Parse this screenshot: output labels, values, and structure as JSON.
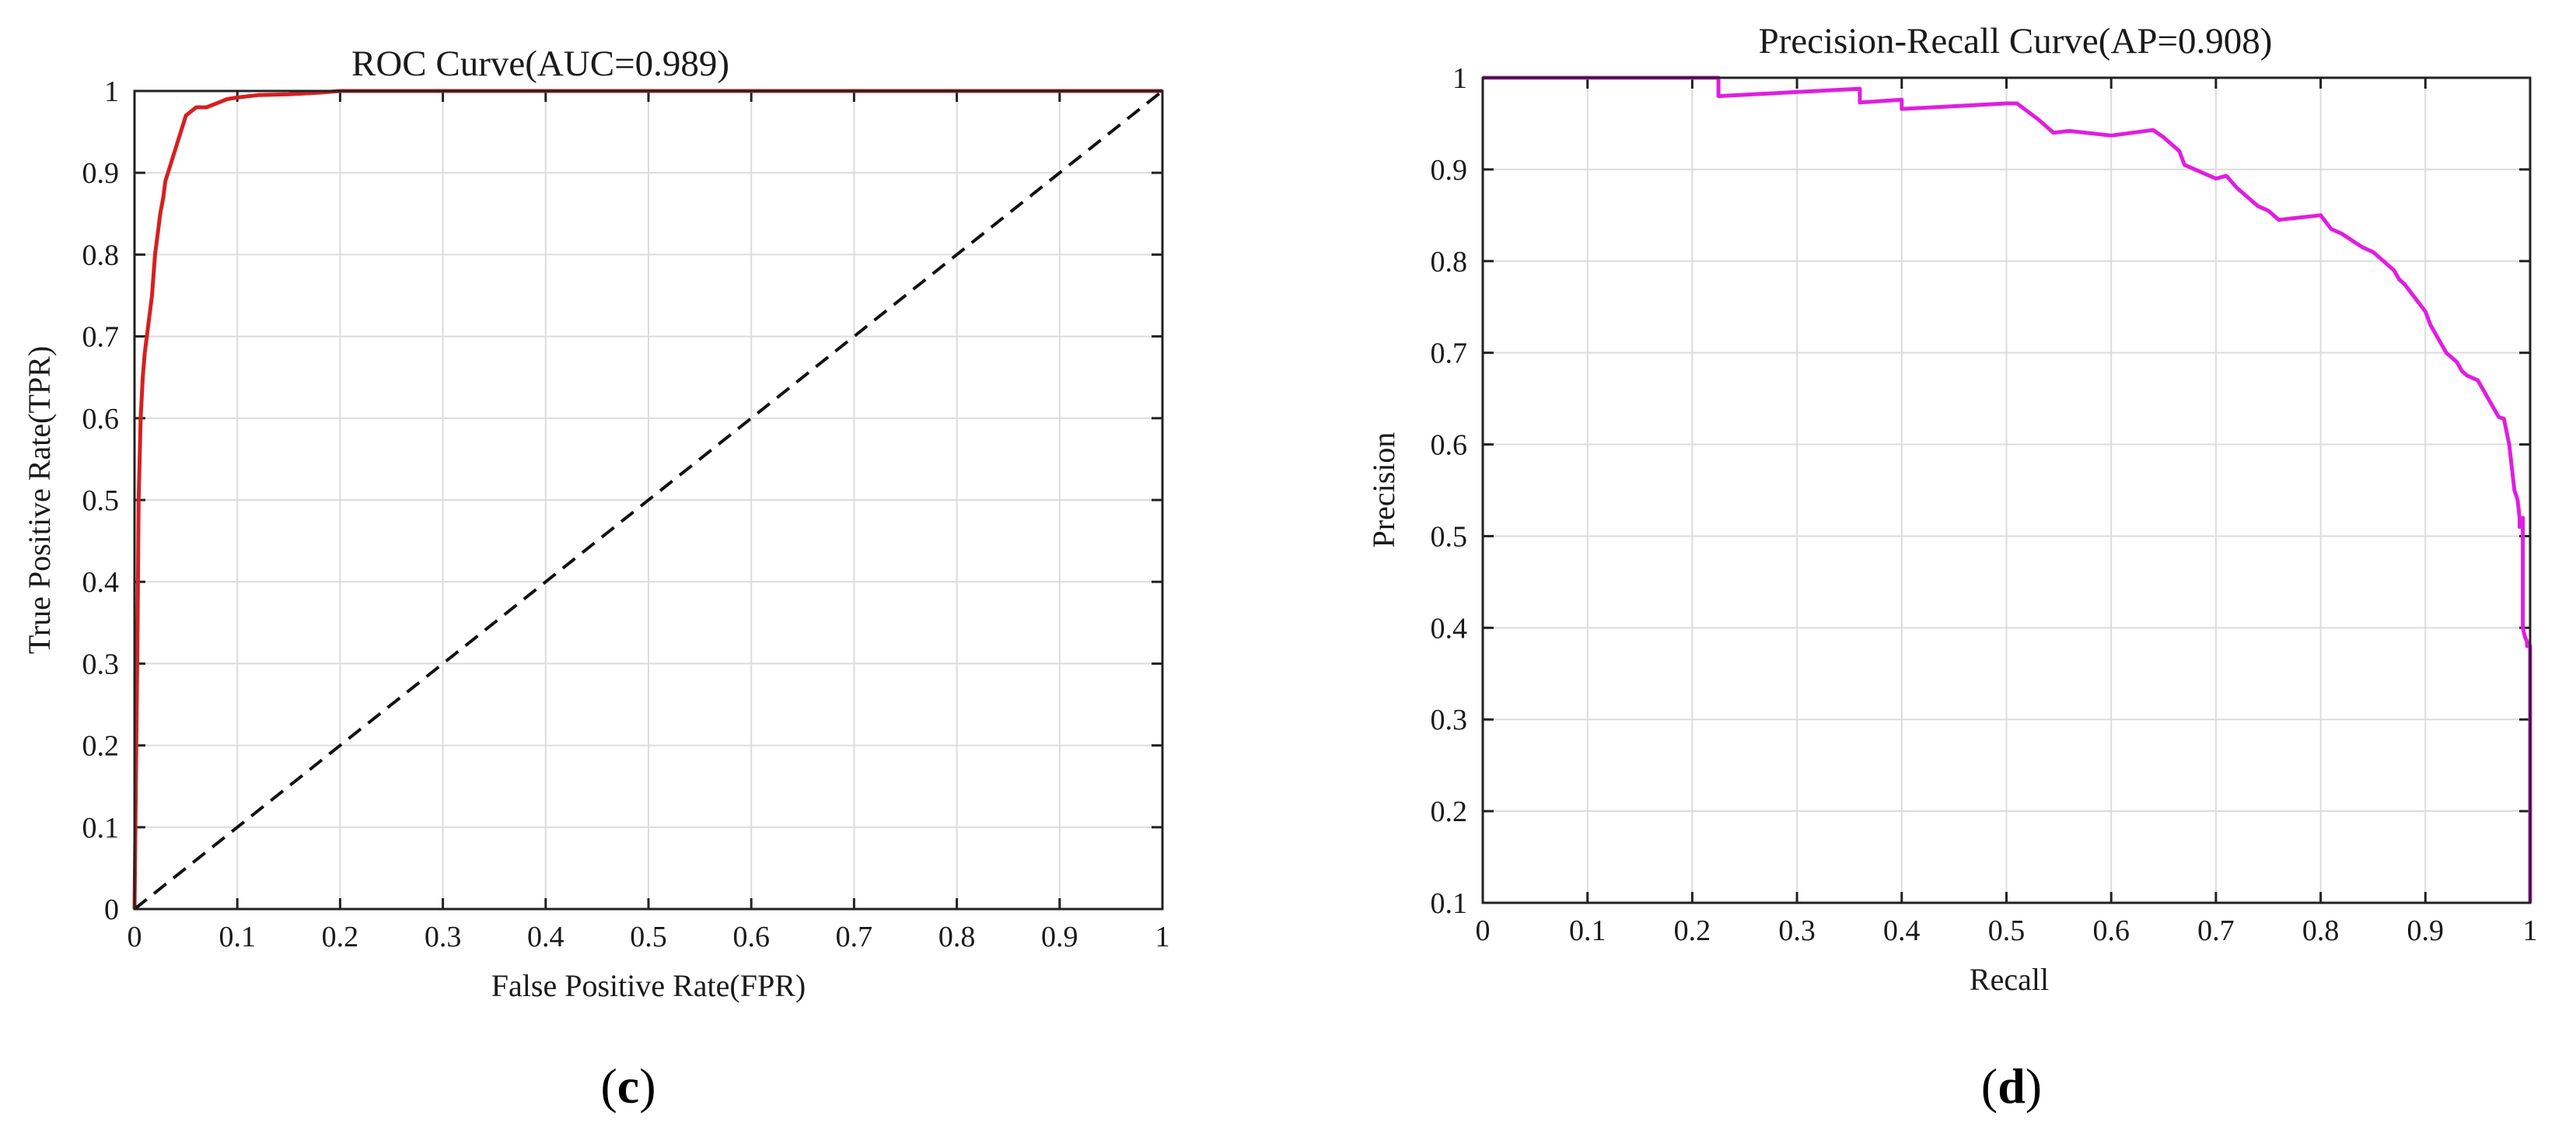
{
  "chart_data": [
    {
      "type": "line",
      "title": "ROC Curve(AUC=0.989)",
      "xlabel": "False Positive Rate(FPR)",
      "ylabel": "True Positive Rate(TPR)",
      "xlim": [
        0,
        1
      ],
      "ylim": [
        0,
        1
      ],
      "xticks": [
        "0",
        "0.1",
        "0.2",
        "0.3",
        "0.4",
        "0.5",
        "0.6",
        "0.7",
        "0.8",
        "0.9",
        "1"
      ],
      "yticks": [
        "0",
        "0.1",
        "0.2",
        "0.3",
        "0.4",
        "0.5",
        "0.6",
        "0.7",
        "0.8",
        "0.9",
        "1"
      ],
      "grid": true,
      "panel_label": "c",
      "series": [
        {
          "color": "#d62020",
          "style": "solid",
          "x": [
            0,
            0.003,
            0.004,
            0.006,
            0.008,
            0.01,
            0.012,
            0.014,
            0.017,
            0.02,
            0.022,
            0.025,
            0.028,
            0.03,
            0.035,
            0.04,
            0.045,
            0.05,
            0.055,
            0.06,
            0.07,
            0.08,
            0.09,
            0.1,
            0.12,
            0.15,
            0.18,
            0.2,
            0.3,
            0.5,
            0.7,
            0.9,
            1.0
          ],
          "y": [
            0,
            0.35,
            0.5,
            0.6,
            0.65,
            0.68,
            0.7,
            0.72,
            0.75,
            0.8,
            0.82,
            0.85,
            0.87,
            0.89,
            0.91,
            0.93,
            0.95,
            0.97,
            0.975,
            0.98,
            0.98,
            0.985,
            0.99,
            0.992,
            0.995,
            0.996,
            0.998,
            1.0,
            1.0,
            1.0,
            1.0,
            1.0,
            1.0
          ]
        },
        {
          "color": "#111111",
          "style": "dashed",
          "x": [
            0,
            1
          ],
          "y": [
            0,
            1
          ]
        }
      ]
    },
    {
      "type": "line",
      "title": "Precision-Recall Curve(AP=0.908)",
      "xlabel": "Recall",
      "ylabel": "Precision",
      "xlim": [
        0,
        1
      ],
      "ylim": [
        0.1,
        1
      ],
      "xticks": [
        "0",
        "0.1",
        "0.2",
        "0.3",
        "0.4",
        "0.5",
        "0.6",
        "0.7",
        "0.8",
        "0.9",
        "1"
      ],
      "yticks": [
        "0.1",
        "0.2",
        "0.3",
        "0.4",
        "0.5",
        "0.6",
        "0.7",
        "0.8",
        "0.9",
        "1"
      ],
      "grid": true,
      "panel_label": "d",
      "series": [
        {
          "color": "#e01ee0",
          "style": "solid",
          "x": [
            0,
            0.225,
            0.225,
            0.36,
            0.36,
            0.4,
            0.4,
            0.5,
            0.51,
            0.53,
            0.545,
            0.56,
            0.6,
            0.64,
            0.65,
            0.665,
            0.67,
            0.68,
            0.7,
            0.71,
            0.72,
            0.74,
            0.75,
            0.76,
            0.8,
            0.81,
            0.82,
            0.84,
            0.85,
            0.86,
            0.87,
            0.875,
            0.88,
            0.89,
            0.9,
            0.905,
            0.91,
            0.915,
            0.92,
            0.93,
            0.935,
            0.94,
            0.95,
            0.955,
            0.96,
            0.97,
            0.975,
            0.98,
            0.985,
            0.988,
            0.99,
            0.99,
            0.993,
            0.993,
            0.995,
            0.995,
            0.997,
            0.997,
            1.0,
            1.0
          ],
          "y": [
            1.0,
            1.0,
            0.98,
            0.988,
            0.973,
            0.976,
            0.966,
            0.972,
            0.972,
            0.955,
            0.94,
            0.942,
            0.937,
            0.943,
            0.935,
            0.92,
            0.905,
            0.9,
            0.89,
            0.893,
            0.88,
            0.86,
            0.855,
            0.845,
            0.85,
            0.835,
            0.83,
            0.815,
            0.81,
            0.8,
            0.79,
            0.78,
            0.775,
            0.76,
            0.745,
            0.73,
            0.72,
            0.71,
            0.7,
            0.69,
            0.68,
            0.675,
            0.67,
            0.66,
            0.65,
            0.63,
            0.628,
            0.6,
            0.55,
            0.54,
            0.52,
            0.51,
            0.52,
            0.4,
            0.39,
            0.39,
            0.385,
            0.38,
            0.38,
            0.1
          ]
        }
      ]
    }
  ]
}
